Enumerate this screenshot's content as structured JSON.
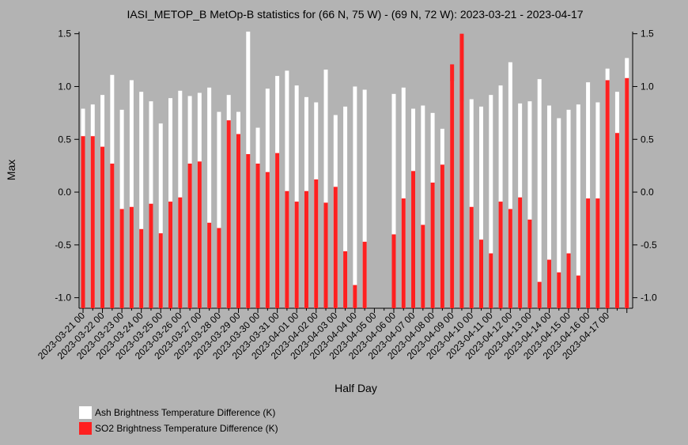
{
  "chart_data": {
    "type": "bar",
    "title": "IASI_METOP_B MetOp-B statistics for (66 N, 75 W) - (69 N, 72 W): 2023-03-21 - 2023-04-17",
    "xlabel": "Half Day",
    "ylabel": "Max",
    "ylim": [
      -1.1,
      1.52
    ],
    "yticks": [
      "1.5",
      "1.0",
      "0.5",
      "0.0",
      "-0.5",
      "-1.0"
    ],
    "ytick_values": [
      1.5,
      1.0,
      0.5,
      0.0,
      -0.5,
      -1.0
    ],
    "grid": false,
    "legend_position": "bottom-left",
    "xtick_labels": [
      "2023-03-21 00",
      "2023-03-22 00",
      "2023-03-23 00",
      "2023-03-24 00",
      "2023-03-25 00",
      "2023-03-26 00",
      "2023-03-27 00",
      "2023-03-28 00",
      "2023-03-29 00",
      "2023-03-30 00",
      "2023-03-31 00",
      "2023-04-01 00",
      "2023-04-02 00",
      "2023-04-03 00",
      "2023-04-04 00",
      "2023-04-05 00",
      "2023-04-06 00",
      "2023-04-07 00",
      "2023-04-08 00",
      "2023-04-09 00",
      "2023-04-10 00",
      "2023-04-11 00",
      "2023-04-12 00",
      "2023-04-13 00",
      "2023-04-14 00",
      "2023-04-15 00",
      "2023-04-16 00",
      "2023-04-17 00"
    ],
    "series": [
      {
        "name": "Ash Brightness Temperature Difference (K)",
        "color": "#ffffff",
        "values": [
          0.79,
          0.83,
          0.92,
          1.11,
          0.78,
          1.06,
          0.95,
          0.86,
          0.65,
          0.89,
          0.96,
          0.91,
          0.94,
          0.99,
          0.76,
          0.92,
          0.76,
          1.53,
          0.61,
          0.98,
          1.1,
          1.15,
          1.01,
          0.9,
          0.85,
          1.16,
          0.73,
          0.81,
          1.0,
          0.97,
          null,
          null,
          0.93,
          0.99,
          0.79,
          0.82,
          0.75,
          0.6,
          1.05,
          0.86,
          0.88,
          0.81,
          0.92,
          1.01,
          1.23,
          0.84,
          0.86,
          1.07,
          0.82,
          0.7,
          0.78,
          0.83,
          1.04,
          0.85,
          1.17,
          0.95,
          1.27
        ]
      },
      {
        "name": "SO2 Brightness Temperature Difference (K)",
        "color": "#ff2020",
        "values": [
          0.53,
          0.53,
          0.43,
          0.27,
          -0.16,
          -0.14,
          -0.35,
          -0.11,
          -0.39,
          -0.09,
          -0.05,
          0.27,
          0.29,
          -0.29,
          -0.34,
          0.68,
          0.55,
          0.36,
          0.27,
          0.19,
          0.37,
          0.01,
          -0.09,
          0.01,
          0.12,
          -0.1,
          0.05,
          -0.56,
          -0.88,
          -0.47,
          null,
          null,
          -0.4,
          -0.06,
          0.2,
          -0.31,
          0.09,
          0.26,
          1.21,
          1.5,
          -0.14,
          -0.45,
          -0.58,
          -0.09,
          -0.16,
          -0.05,
          -0.26,
          -0.85,
          -0.64,
          -0.76,
          -0.58,
          -0.79,
          -0.06,
          -0.06,
          1.06,
          0.56,
          1.08
        ]
      }
    ]
  }
}
